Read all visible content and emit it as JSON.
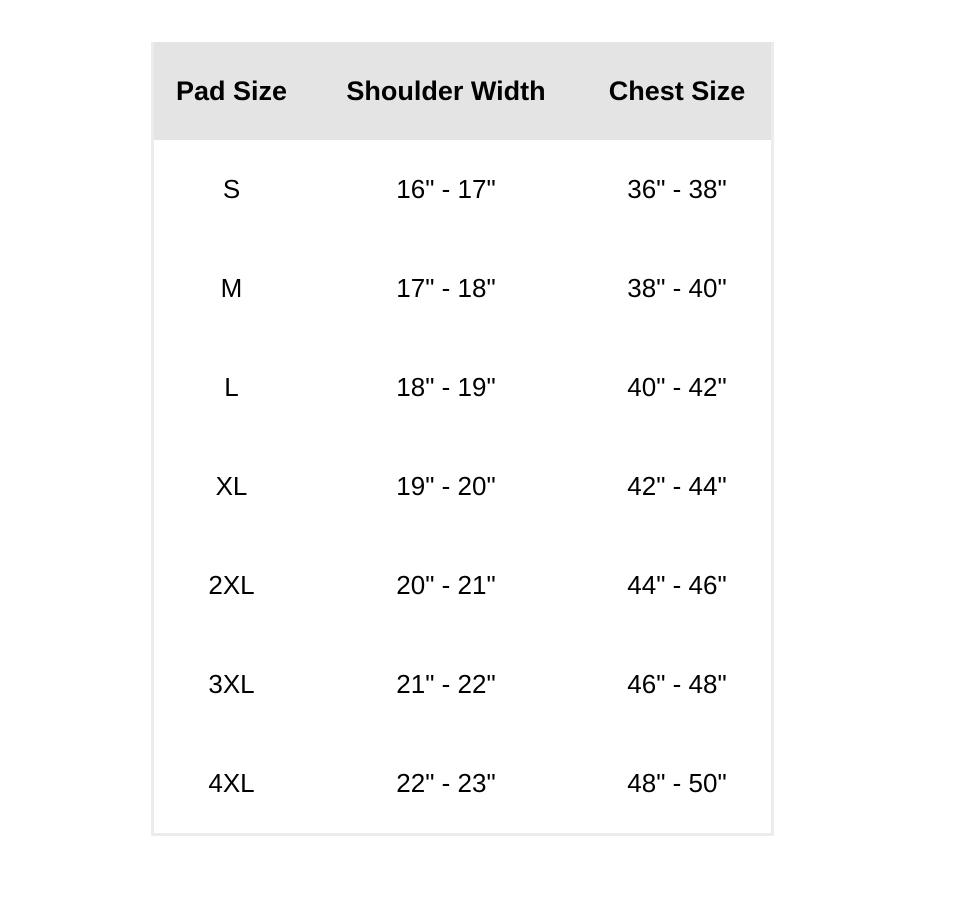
{
  "table": {
    "headers": [
      "Pad Size",
      "Shoulder Width",
      "Chest Size"
    ],
    "rows": [
      [
        "S",
        "16\" - 17\"",
        "36\" - 38\""
      ],
      [
        "M",
        "17\" - 18\"",
        "38\" - 40\""
      ],
      [
        "L",
        "18\" - 19\"",
        "40\" - 42\""
      ],
      [
        "XL",
        "19\" - 20\"",
        "42\" - 44\""
      ],
      [
        "2XL",
        "20\" - 21\"",
        "44\" - 46\""
      ],
      [
        "3XL",
        "21\" - 22\"",
        "46\" - 48\""
      ],
      [
        "4XL",
        "22\" - 23\"",
        "48\" - 50\""
      ]
    ]
  },
  "colors": {
    "header_bg": "#e4e4e4",
    "border": "#ececec",
    "text": "#000000"
  }
}
